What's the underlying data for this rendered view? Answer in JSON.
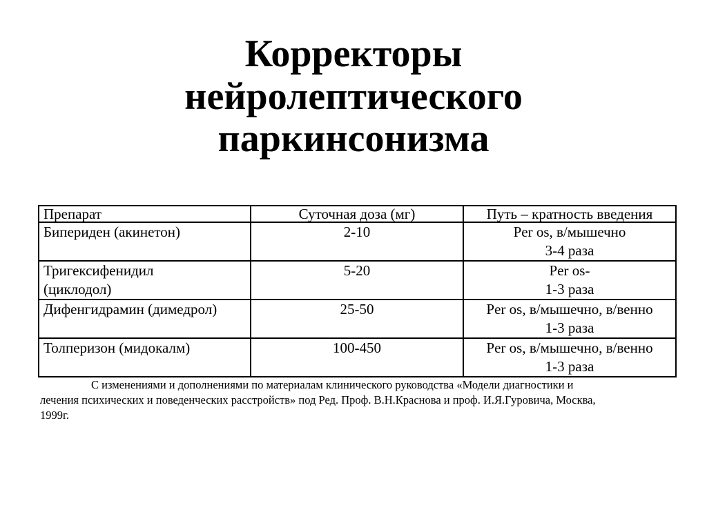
{
  "slide": {
    "title": "Корректоры нейролептического паркинсонизма",
    "table": {
      "headers": {
        "drug": "Препарат",
        "dose": "Суточная доза (мг)",
        "route": "Путь – кратность введения"
      },
      "rows": [
        {
          "drug_lines": [
            "Бипериден (акинетон)"
          ],
          "dose": "2-10",
          "route_lines": [
            "Per os, в/мышечно",
            "3-4 раза"
          ]
        },
        {
          "drug_lines": [
            "Тригексифенидил",
            "(циклодол)"
          ],
          "dose": "5-20",
          "route_lines": [
            "Per os-",
            "1-3 раза"
          ]
        },
        {
          "drug_lines": [
            "Дифенгидрамин (димедрол)"
          ],
          "dose": "25-50",
          "route_lines": [
            "Per os, в/мышечно, в/венно",
            "1-3 раза"
          ]
        },
        {
          "drug_lines": [
            "Толперизон (мидокалм)"
          ],
          "dose": "100-450",
          "route_lines": [
            "Per os, в/мышечно, в/венно",
            "1-3 раза"
          ]
        }
      ]
    },
    "footnote": "С изменениями и дополнениями по материалам клинического руководства «Модели диагностики и лечения психических и поведенческих расстройств» под Ред. Проф. В.Н.Краснова и проф. И.Я.Гуровича, Москва, 1999г.",
    "colors": {
      "background": "#ffffff",
      "text": "#000000",
      "table_border": "#000000"
    }
  }
}
